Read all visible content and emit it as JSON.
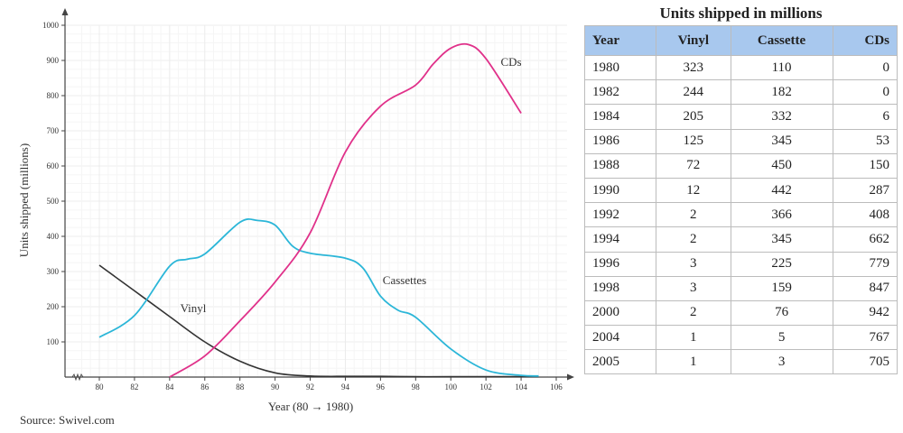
{
  "chart_data": [
    {
      "type": "line",
      "title": "",
      "xlabel": "Year (80 → 1980)",
      "ylabel": "Units shipped (millions)",
      "xlim": [
        79,
        106
      ],
      "ylim": [
        0,
        1000
      ],
      "xticks": [
        80,
        82,
        84,
        86,
        88,
        90,
        92,
        94,
        96,
        98,
        100,
        102,
        104,
        106
      ],
      "yticks": [
        100,
        200,
        300,
        400,
        500,
        600,
        700,
        800,
        900,
        1000
      ],
      "grid": true,
      "series": [
        {
          "name": "Vinyl",
          "color": "#333333",
          "x": [
            80,
            82,
            84,
            86,
            88,
            90,
            92,
            94,
            96,
            98,
            100,
            104,
            105
          ],
          "y": [
            318,
            245,
            172,
            100,
            45,
            12,
            3,
            2,
            2,
            1,
            1,
            1,
            1
          ]
        },
        {
          "name": "Cassettes",
          "color": "#2bb6d8",
          "x": [
            80,
            82,
            84,
            85,
            86,
            88,
            89,
            90,
            91,
            92,
            94,
            95,
            96,
            97,
            98,
            100,
            102,
            104,
            105
          ],
          "y": [
            113,
            175,
            315,
            335,
            350,
            440,
            445,
            432,
            372,
            352,
            338,
            310,
            230,
            190,
            170,
            80,
            20,
            5,
            3
          ]
        },
        {
          "name": "CDs",
          "color": "#e0318a",
          "x": [
            84,
            86,
            88,
            90,
            92,
            94,
            96,
            98,
            99,
            100,
            101,
            102,
            104
          ],
          "y": [
            0,
            60,
            160,
            270,
            410,
            640,
            770,
            830,
            890,
            935,
            945,
            905,
            750
          ]
        }
      ]
    },
    {
      "type": "table",
      "title": "Units shipped in millions",
      "columns": [
        "Year",
        "Vinyl",
        "Cassette",
        "CDs"
      ],
      "rows": [
        [
          "1980",
          "323",
          "110",
          "0"
        ],
        [
          "1982",
          "244",
          "182",
          "0"
        ],
        [
          "1984",
          "205",
          "332",
          "6"
        ],
        [
          "1986",
          "125",
          "345",
          "53"
        ],
        [
          "1988",
          "72",
          "450",
          "150"
        ],
        [
          "1990",
          "12",
          "442",
          "287"
        ],
        [
          "1992",
          "2",
          "366",
          "408"
        ],
        [
          "1994",
          "2",
          "345",
          "662"
        ],
        [
          "1996",
          "3",
          "225",
          "779"
        ],
        [
          "1998",
          "3",
          "159",
          "847"
        ],
        [
          "2000",
          "2",
          "76",
          "942"
        ],
        [
          "2004",
          "1",
          "5",
          "767"
        ],
        [
          "2005",
          "1",
          "3",
          "705"
        ]
      ]
    }
  ],
  "source": "Source: Swivel.com"
}
